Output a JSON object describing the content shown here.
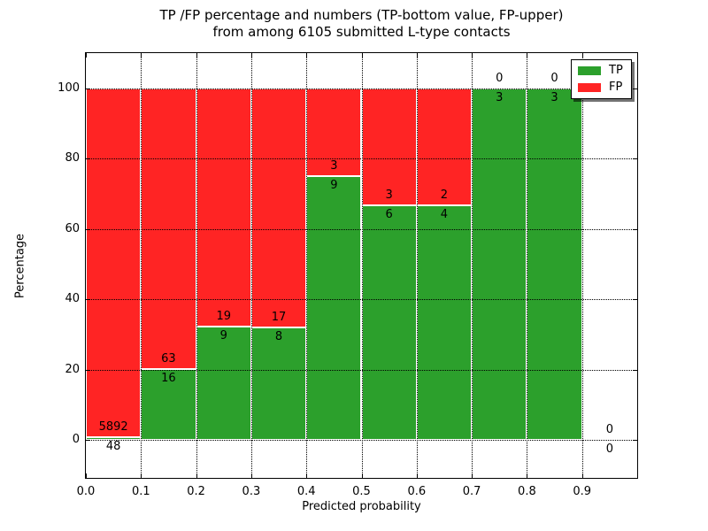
{
  "title": {
    "line1": "TP /FP percentage and numbers (TP-bottom value, FP-upper)",
    "line2": "from among 6105 submitted L-type contacts"
  },
  "chart_data": {
    "type": "bar",
    "variant": "stacked-percentage",
    "title": "TP /FP percentage and numbers (TP-bottom value, FP-upper)\nfrom among 6105 submitted L-type contacts",
    "xlabel": "Predicted probability",
    "ylabel": "Percentage",
    "total_contacts": 6105,
    "x_tick_labels": [
      "0.0",
      "0.1",
      "0.2",
      "0.3",
      "0.4",
      "0.5",
      "0.6",
      "0.7",
      "0.8",
      "0.9"
    ],
    "x_tick_values": [
      0.0,
      0.1,
      0.2,
      0.3,
      0.4,
      0.5,
      0.6,
      0.7,
      0.8,
      0.9
    ],
    "y_tick_values": [
      0,
      20,
      40,
      60,
      80,
      100
    ],
    "xlim": [
      0.0,
      1.0
    ],
    "ylim": [
      -11,
      110
    ],
    "grid": true,
    "bin_width": 0.1,
    "label_convention": "TP count below segment boundary, FP count above",
    "bins": [
      {
        "x_start": 0.0,
        "x_end": 0.1,
        "tp": 48,
        "fp": 5892
      },
      {
        "x_start": 0.1,
        "x_end": 0.2,
        "tp": 16,
        "fp": 63
      },
      {
        "x_start": 0.2,
        "x_end": 0.3,
        "tp": 9,
        "fp": 19
      },
      {
        "x_start": 0.3,
        "x_end": 0.4,
        "tp": 8,
        "fp": 17
      },
      {
        "x_start": 0.4,
        "x_end": 0.5,
        "tp": 9,
        "fp": 3
      },
      {
        "x_start": 0.5,
        "x_end": 0.6,
        "tp": 6,
        "fp": 3
      },
      {
        "x_start": 0.6,
        "x_end": 0.7,
        "tp": 4,
        "fp": 2
      },
      {
        "x_start": 0.7,
        "x_end": 0.8,
        "tp": 3,
        "fp": 0
      },
      {
        "x_start": 0.8,
        "x_end": 0.9,
        "tp": 3,
        "fp": 0
      },
      {
        "x_start": 0.9,
        "x_end": 1.0,
        "tp": 0,
        "fp": 0
      }
    ],
    "colors": {
      "tp": "#2ca02c",
      "fp": "#ff2424"
    },
    "legend": {
      "position": "upper right",
      "entries": [
        {
          "label": "TP",
          "color": "#2ca02c"
        },
        {
          "label": "FP",
          "color": "#ff2424"
        }
      ]
    }
  }
}
